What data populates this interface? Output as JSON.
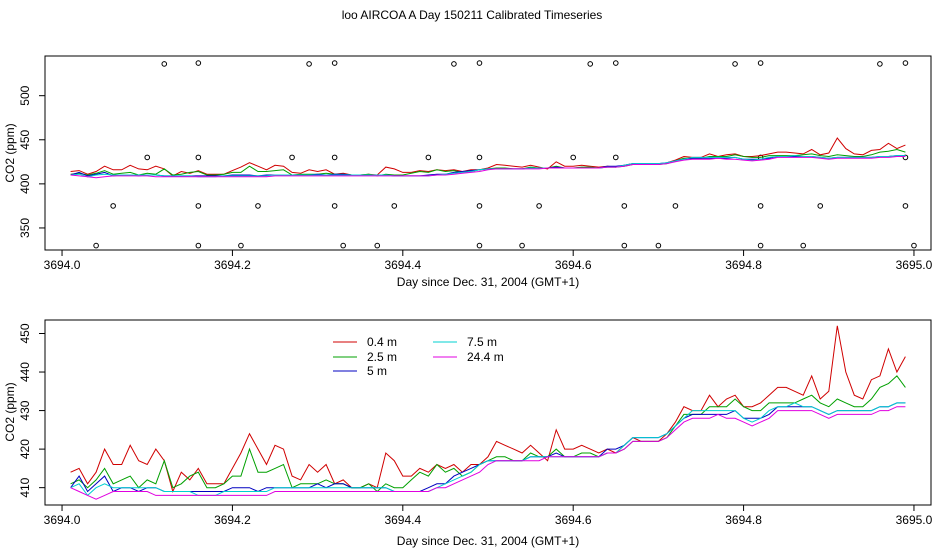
{
  "title": "loo AIRCOA A  Day 150211  Calibrated Timeseries",
  "colors": {
    "0.4 m": "#d00000",
    "2.5 m": "#00a000",
    "5 m": "#0000c0",
    "7.5 m": "#00d0d0",
    "24.4 m": "#e000e0"
  },
  "chart_data": [
    {
      "type": "line",
      "xlabel": "Day since Dec. 31, 2004 (GMT+1)",
      "ylabel": "CO2 (ppm)",
      "xlim": [
        3693.98,
        3695.02
      ],
      "ylim": [
        325,
        545
      ],
      "xticks": [
        "3694.0",
        "3694.2",
        "3694.4",
        "3694.6",
        "3694.8",
        "3695.0"
      ],
      "yticks": [
        "350",
        "400",
        "450",
        "500"
      ],
      "x": [
        3694.01,
        3694.02,
        3694.03,
        3694.04,
        3694.05,
        3694.06,
        3694.07,
        3694.08,
        3694.09,
        3694.1,
        3694.11,
        3694.12,
        3694.13,
        3694.14,
        3694.15,
        3694.16,
        3694.17,
        3694.18,
        3694.19,
        3694.2,
        3694.21,
        3694.22,
        3694.23,
        3694.24,
        3694.25,
        3694.26,
        3694.27,
        3694.28,
        3694.29,
        3694.3,
        3694.31,
        3694.32,
        3694.33,
        3694.34,
        3694.35,
        3694.36,
        3694.37,
        3694.38,
        3694.39,
        3694.4,
        3694.41,
        3694.42,
        3694.43,
        3694.44,
        3694.45,
        3694.46,
        3694.47,
        3694.48,
        3694.49,
        3694.5,
        3694.51,
        3694.52,
        3694.53,
        3694.54,
        3694.55,
        3694.56,
        3694.57,
        3694.58,
        3694.59,
        3694.6,
        3694.61,
        3694.62,
        3694.63,
        3694.64,
        3694.65,
        3694.66,
        3694.67,
        3694.68,
        3694.69,
        3694.7,
        3694.71,
        3694.72,
        3694.73,
        3694.74,
        3694.75,
        3694.76,
        3694.77,
        3694.78,
        3694.79,
        3694.8,
        3694.81,
        3694.82,
        3694.83,
        3694.84,
        3694.85,
        3694.86,
        3694.87,
        3694.88,
        3694.89,
        3694.9,
        3694.91,
        3694.92,
        3694.93,
        3694.94,
        3694.95,
        3694.96,
        3694.97,
        3694.98,
        3694.99
      ],
      "series": [
        {
          "name": "0.4 m",
          "values": [
            414,
            415,
            411,
            414,
            420,
            416,
            416,
            421,
            417,
            416,
            420,
            417,
            409,
            414,
            412,
            415,
            411,
            411,
            411,
            415,
            419,
            424,
            420,
            416,
            421,
            420,
            413,
            412,
            416,
            414,
            416,
            411,
            412,
            410,
            410,
            411,
            410,
            419,
            417,
            413,
            413,
            415,
            414,
            416,
            415,
            416,
            414,
            416,
            416,
            418,
            422,
            421,
            420,
            419,
            421,
            419,
            417,
            425,
            420,
            420,
            421,
            420,
            419,
            420,
            419,
            421,
            423,
            422,
            422,
            422,
            424,
            427,
            431,
            430,
            430,
            434,
            431,
            433,
            434,
            431,
            431,
            432,
            434,
            436,
            436,
            435,
            434,
            439,
            433,
            435,
            452,
            440,
            434,
            433,
            438,
            439,
            446,
            440,
            444
          ]
        },
        {
          "name": "2.5 m",
          "values": [
            411,
            412,
            410,
            412,
            415,
            411,
            412,
            413,
            410,
            412,
            411,
            417,
            410,
            411,
            413,
            414,
            410,
            410,
            411,
            413,
            413,
            420,
            414,
            414,
            415,
            416,
            410,
            411,
            411,
            411,
            412,
            411,
            411,
            410,
            410,
            411,
            409,
            411,
            410,
            410,
            412,
            414,
            413,
            416,
            414,
            415,
            413,
            414,
            416,
            417,
            418,
            418,
            417,
            417,
            419,
            418,
            418,
            420,
            418,
            418,
            419,
            419,
            418,
            419,
            419,
            420,
            422,
            422,
            422,
            422,
            423,
            426,
            429,
            429,
            429,
            431,
            431,
            431,
            433,
            431,
            430,
            430,
            432,
            432,
            432,
            432,
            433,
            434,
            432,
            431,
            433,
            432,
            431,
            431,
            433,
            436,
            437,
            439,
            436
          ]
        },
        {
          "name": "5 m",
          "values": [
            410,
            413,
            409,
            411,
            413,
            409,
            410,
            410,
            409,
            410,
            410,
            409,
            409,
            409,
            409,
            409,
            409,
            409,
            409,
            410,
            410,
            410,
            409,
            410,
            410,
            410,
            410,
            410,
            410,
            411,
            410,
            411,
            411,
            410,
            410,
            410,
            410,
            410,
            409,
            409,
            409,
            409,
            410,
            411,
            411,
            413,
            414,
            415,
            416,
            417,
            417,
            417,
            417,
            417,
            418,
            418,
            418,
            419,
            418,
            418,
            418,
            418,
            418,
            420,
            420,
            421,
            423,
            423,
            423,
            423,
            424,
            426,
            428,
            429,
            429,
            429,
            429,
            429,
            430,
            428,
            428,
            428,
            429,
            431,
            431,
            431,
            431,
            431,
            430,
            429,
            430,
            430,
            430,
            430,
            430,
            431,
            431,
            432,
            432
          ]
        },
        {
          "name": "7.5 m",
          "values": [
            410,
            411,
            408,
            410,
            411,
            410,
            410,
            410,
            410,
            410,
            410,
            409,
            409,
            409,
            409,
            408,
            408,
            408,
            409,
            409,
            409,
            409,
            409,
            409,
            410,
            410,
            410,
            410,
            410,
            410,
            410,
            410,
            410,
            410,
            410,
            410,
            410,
            410,
            409,
            409,
            409,
            409,
            409,
            410,
            411,
            412,
            413,
            414,
            416,
            417,
            417,
            417,
            417,
            417,
            418,
            418,
            418,
            418,
            418,
            418,
            418,
            418,
            418,
            419,
            419,
            421,
            423,
            423,
            423,
            423,
            424,
            426,
            428,
            430,
            430,
            430,
            430,
            430,
            430,
            428,
            427,
            428,
            430,
            431,
            431,
            432,
            431,
            431,
            430,
            429,
            430,
            430,
            430,
            430,
            430,
            431,
            431,
            432,
            432
          ]
        },
        {
          "name": "24.4 m",
          "values": [
            410,
            409,
            408,
            407,
            408,
            409,
            409,
            409,
            409,
            409,
            408,
            408,
            408,
            408,
            408,
            408,
            408,
            408,
            408,
            408,
            408,
            408,
            408,
            408,
            409,
            409,
            409,
            409,
            409,
            409,
            409,
            409,
            409,
            409,
            409,
            409,
            409,
            409,
            409,
            409,
            409,
            409,
            409,
            410,
            410,
            411,
            412,
            413,
            414,
            416,
            417,
            417,
            417,
            417,
            417,
            417,
            418,
            418,
            418,
            418,
            418,
            418,
            418,
            419,
            419,
            420,
            422,
            422,
            422,
            422,
            423,
            425,
            427,
            428,
            428,
            428,
            429,
            428,
            428,
            427,
            426,
            427,
            428,
            430,
            430,
            430,
            430,
            430,
            429,
            428,
            429,
            429,
            429,
            429,
            429,
            430,
            430,
            431,
            431
          ]
        }
      ],
      "markers": [
        {
          "x": 3694.04,
          "y": 330
        },
        {
          "x": 3694.06,
          "y": 375
        },
        {
          "x": 3694.1,
          "y": 430
        },
        {
          "x": 3694.12,
          "y": 536
        },
        {
          "x": 3694.16,
          "y": 537
        },
        {
          "x": 3694.16,
          "y": 430
        },
        {
          "x": 3694.16,
          "y": 375
        },
        {
          "x": 3694.16,
          "y": 330
        },
        {
          "x": 3694.21,
          "y": 330
        },
        {
          "x": 3694.23,
          "y": 375
        },
        {
          "x": 3694.27,
          "y": 430
        },
        {
          "x": 3694.29,
          "y": 536
        },
        {
          "x": 3694.32,
          "y": 537
        },
        {
          "x": 3694.32,
          "y": 430
        },
        {
          "x": 3694.32,
          "y": 375
        },
        {
          "x": 3694.33,
          "y": 330
        },
        {
          "x": 3694.37,
          "y": 330
        },
        {
          "x": 3694.39,
          "y": 375
        },
        {
          "x": 3694.43,
          "y": 430
        },
        {
          "x": 3694.46,
          "y": 536
        },
        {
          "x": 3694.49,
          "y": 537
        },
        {
          "x": 3694.49,
          "y": 430
        },
        {
          "x": 3694.49,
          "y": 375
        },
        {
          "x": 3694.49,
          "y": 330
        },
        {
          "x": 3694.54,
          "y": 330
        },
        {
          "x": 3694.56,
          "y": 375
        },
        {
          "x": 3694.6,
          "y": 430
        },
        {
          "x": 3694.62,
          "y": 536
        },
        {
          "x": 3694.65,
          "y": 537
        },
        {
          "x": 3694.65,
          "y": 430
        },
        {
          "x": 3694.66,
          "y": 375
        },
        {
          "x": 3694.66,
          "y": 330
        },
        {
          "x": 3694.7,
          "y": 330
        },
        {
          "x": 3694.72,
          "y": 375
        },
        {
          "x": 3694.79,
          "y": 536
        },
        {
          "x": 3694.82,
          "y": 537
        },
        {
          "x": 3694.82,
          "y": 430
        },
        {
          "x": 3694.82,
          "y": 375
        },
        {
          "x": 3694.82,
          "y": 330
        },
        {
          "x": 3694.87,
          "y": 330
        },
        {
          "x": 3694.89,
          "y": 375
        },
        {
          "x": 3694.96,
          "y": 536
        },
        {
          "x": 3694.99,
          "y": 537
        },
        {
          "x": 3694.99,
          "y": 430
        },
        {
          "x": 3694.99,
          "y": 375
        },
        {
          "x": 3695.0,
          "y": 330
        }
      ]
    },
    {
      "type": "line",
      "xlabel": "Day since Dec. 31, 2004 (GMT+1)",
      "ylabel": "CO2 (ppm)",
      "xlim": [
        3693.98,
        3695.02
      ],
      "ylim": [
        405.5,
        453.5
      ],
      "xticks": [
        "3694.0",
        "3694.2",
        "3694.4",
        "3694.6",
        "3694.8",
        "3695.0"
      ],
      "yticks": [
        "410",
        "420",
        "430",
        "440",
        "450"
      ],
      "legend": [
        "0.4 m",
        "2.5 m",
        "5 m",
        "7.5 m",
        "24.4 m"
      ],
      "legend_position": "top-left"
    }
  ]
}
